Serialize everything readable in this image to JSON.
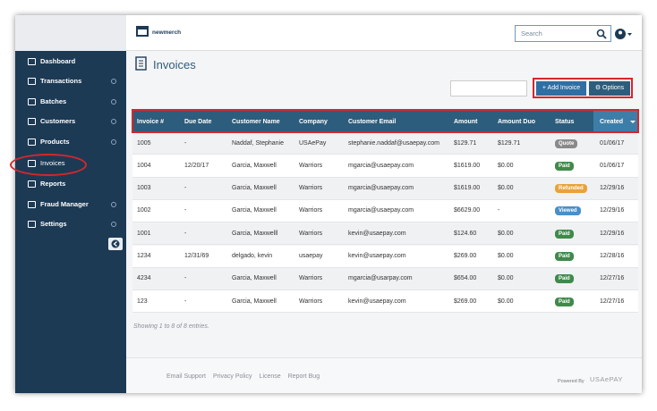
{
  "header": {
    "logo": "newmerch",
    "search_placeholder": "Search"
  },
  "sidebar": {
    "items": [
      {
        "label": "Dashboard",
        "has_submenu": false
      },
      {
        "label": "Transactions",
        "has_submenu": true
      },
      {
        "label": "Batches",
        "has_submenu": true
      },
      {
        "label": "Customers",
        "has_submenu": true
      },
      {
        "label": "Products",
        "has_submenu": true
      },
      {
        "label": "Invoices",
        "has_submenu": false
      },
      {
        "label": "Reports",
        "has_submenu": false
      },
      {
        "label": "Fraud Manager",
        "has_submenu": true
      },
      {
        "label": "Settings",
        "has_submenu": true
      }
    ],
    "highlighted": 5
  },
  "page": {
    "title": "Invoices",
    "add_button": "Add Invoice",
    "options_button": "Options"
  },
  "table": {
    "columns": [
      "Invoice #",
      "Due Date",
      "Customer Name",
      "Company",
      "Customer Email",
      "Amount",
      "Amount Duo",
      "Status",
      "Created"
    ],
    "rows": [
      [
        "1005",
        "-",
        "Naddaf, Stephanie",
        "USAePay",
        "stephanie.naddaf@usaepay.com",
        "$129.71",
        "$129.71",
        "Quote",
        "01/06/17"
      ],
      [
        "1004",
        "12/20/17",
        "Garcia, Maxwell",
        "Warriors",
        "mgarcia@usaepay.com",
        "$1619.00",
        "$0.00",
        "Paid",
        "01/06/17"
      ],
      [
        "1003",
        "-",
        "Garcia, Maxwell",
        "Warriors",
        "mgarcia@usaepay.com",
        "$1619.00",
        "$0.00",
        "Refunded",
        "12/29/16"
      ],
      [
        "1002",
        "-",
        "Garcia, Maxwell",
        "Warriors",
        "mgarcia@usaepay.com",
        "$6629.00",
        "-",
        "Viewed",
        "12/29/16"
      ],
      [
        "1001",
        "-",
        "Garcia, Maxwelll",
        "Warriors",
        "kevin@usaepay.com",
        "$124.60",
        "$0.00",
        "Paid",
        "12/29/16"
      ],
      [
        "1234",
        "12/31/69",
        "delgado, kevin",
        "usaepay",
        "kevin@usaepay.com",
        "$269.00",
        "$0.00",
        "Paid",
        "12/28/16"
      ],
      [
        "4234",
        "-",
        "Garcia, Maxwell",
        "Warriors",
        "mgarcia@usarpay.com",
        "$654.00",
        "$0.00",
        "Paid",
        "12/27/16"
      ],
      [
        "123",
        "-",
        "Garcia, Maxwell",
        "Warriors",
        "kevin@usaepay.com",
        "$269.00",
        "$0.00",
        "Paid",
        "12/27/16"
      ]
    ],
    "status_colors": [
      "#8a8a8a",
      "#3f8a4b",
      "#e9a23b",
      "#4a8fc9",
      "#3f8a4b",
      "#3f8a4b",
      "#3f8a4b",
      "#3f8a4b"
    ],
    "summary": "Showing 1 to 8 of 8 entries."
  },
  "footer": {
    "links": [
      "Email Support",
      "Privacy Policy",
      "License",
      "Report Bug"
    ],
    "powered_by": "Powered By",
    "brand": "USAePAY"
  }
}
